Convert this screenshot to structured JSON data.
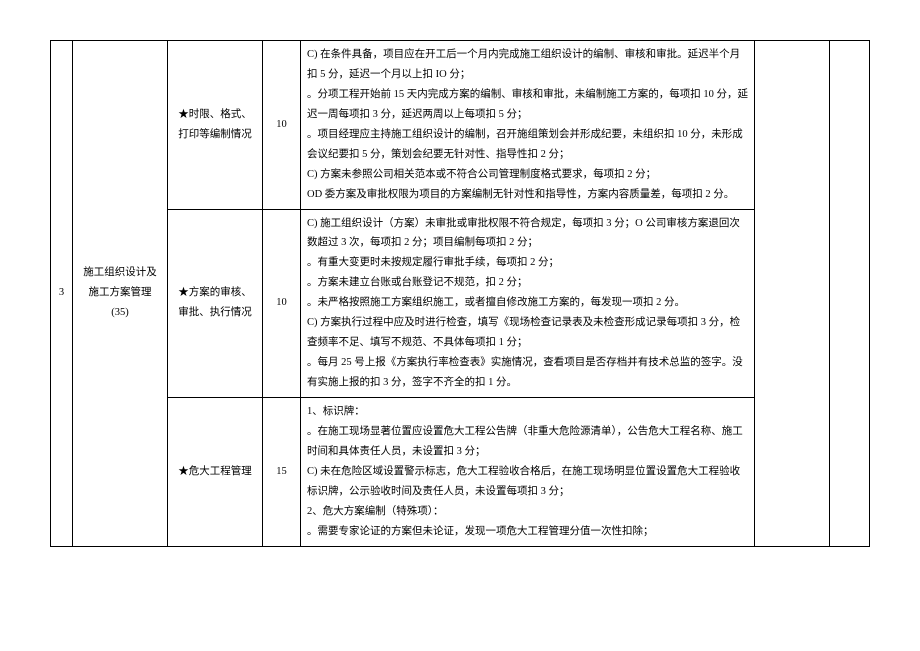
{
  "table": {
    "row_index": "3",
    "category": "施工组织设计及施工方案管理 (35)",
    "rows": [
      {
        "sub": "★时限、格式、打印等编制情况",
        "score": "10",
        "detail_lines": [
          "C) 在条件具备，项目应在开工后一个月内完成施工组织设计的编制、审核和审批。延迟半个月扣 5 分，延迟一个月以上扣 IO 分；",
          "。分项工程开始前 15 天内完成方案的编制、审核和审批，未编制施工方案的，每项扣 10 分，延迟一周每项扣 3 分，延迟两周以上每项扣 5 分；",
          "。项目经理应主持施工组织设计的编制，召开施组策划会并形成纪要，未组织扣 10 分，未形成会议纪要扣 5 分，策划会纪要无针对性、指导性扣 2 分；",
          "C) 方案未参照公司相关范本或不符合公司管理制度格式要求，每项扣 2 分；",
          "OD 委方案及审批权限为项目的方案编制无针对性和指导性，方案内容质量差，每项扣 2 分。"
        ]
      },
      {
        "sub": "★方案的审核、审批、执行情况",
        "score": "10",
        "detail_lines": [
          "C) 施工组织设计（方案）未审批或审批权限不符合规定，每项扣 3 分；O 公司审核方案退回次数超过 3 次，每项扣 2 分；项目编制每项扣 2 分；",
          "。有重大变更时未按规定履行审批手续，每项扣 2 分；",
          "。方案未建立台账或台账登记不规范，扣 2 分；",
          "。未严格按照施工方案组织施工，或者擅自修改施工方案的，每发现一项扣 2 分。",
          "C) 方案执行过程中应及时进行检查，填写《现场检查记录表及未检查形成记录每项扣 3 分，检查频率不足、填写不规范、不具体每项扣 1 分；",
          "。每月 25 号上报《方案执行率检查表》实施情况，查看项目是否存档并有技术总监的签字。没有实施上报的扣 3 分，签字不齐全的扣 1 分。"
        ]
      },
      {
        "sub": "★危大工程管理",
        "score": "15",
        "detail_lines": [
          "1、标识牌：",
          "。在施工现场显著位置应设置危大工程公告牌（非重大危险源清单），公告危大工程名称、施工时间和具体责任人员，未设置扣 3 分；",
          "C) 未在危险区域设置警示标志，危大工程验收合格后，在施工现场明显位置设置危大工程验收标识牌，公示验收时间及责任人员，未设置每项扣 3 分；",
          "2、危大方案编制（特殊项）：",
          "。需要专家论证的方案但未论证，发现一项危大工程管理分值一次性扣除；"
        ]
      }
    ]
  }
}
